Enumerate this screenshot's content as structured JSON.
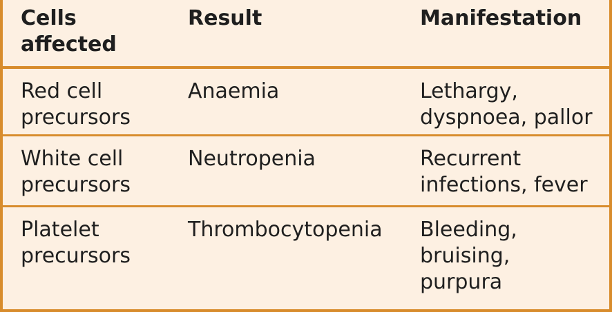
{
  "table": {
    "headers": [
      [
        "Cells",
        "affected"
      ],
      [
        "Result"
      ],
      [
        "Manifestation"
      ]
    ],
    "rows": [
      {
        "cells_affected": [
          "Red cell",
          "precursors"
        ],
        "result": [
          "Anaemia"
        ],
        "manifestation": [
          "Lethargy,",
          "dyspnoea, pallor"
        ]
      },
      {
        "cells_affected": [
          "White cell",
          "precursors"
        ],
        "result": [
          "Neutropenia"
        ],
        "manifestation": [
          "Recurrent",
          "infections, fever"
        ]
      },
      {
        "cells_affected": [
          "Platelet",
          "precursors"
        ],
        "result": [
          "Thrombocytopenia"
        ],
        "manifestation": [
          "Bleeding,",
          "bruising,",
          "purpura"
        ]
      }
    ]
  },
  "colors": {
    "border": "#d88c2c",
    "background": "#fdf0e2",
    "text": "#1f1f1f"
  }
}
